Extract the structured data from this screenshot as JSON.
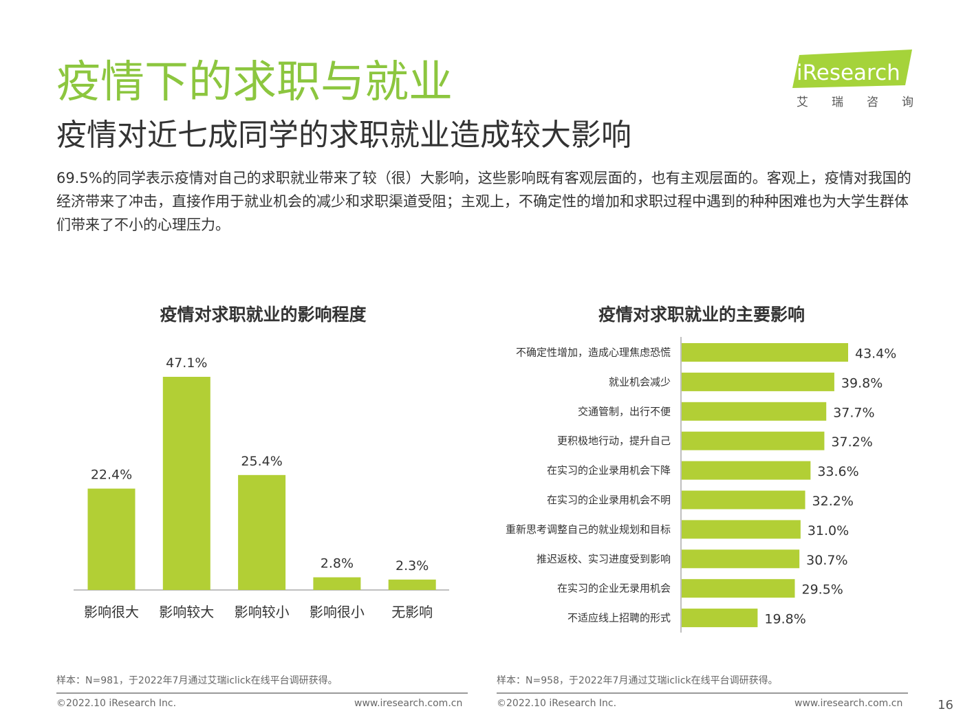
{
  "header": {
    "title": "疫情下的求职与就业",
    "subtitle": "疫情对近七成同学的求职就业造成较大影响",
    "intro": "69.5%的同学表示疫情对自己的求职就业带来了较（很）大影响，这些影响既有客观层面的，也有主观层面的。客观上，疫情对我国的经济带来了冲击，直接作用于就业机会的减少和求职渠道受阻；主观上，不确定性的增加和求职过程中遇到的种种困难也为大学生群体们带来了不小的心理压力。"
  },
  "logo": {
    "brand": "iResearch",
    "chinese_chars": [
      "艾",
      "瑞",
      "咨",
      "询"
    ]
  },
  "colors": {
    "accent": "#8cc63f",
    "bar": "#b2cf35"
  },
  "chart_data": [
    {
      "type": "bar",
      "title": "疫情对求职就业的影响程度",
      "categories": [
        "影响很大",
        "影响较大",
        "影响较小",
        "影响很小",
        "无影响"
      ],
      "values": [
        22.4,
        47.1,
        25.4,
        2.8,
        2.3
      ],
      "value_labels": [
        "22.4%",
        "47.1%",
        "25.4%",
        "2.8%",
        "2.3%"
      ],
      "unit": "%",
      "ylim": [
        0,
        50
      ],
      "grid": false
    },
    {
      "type": "bar",
      "orientation": "horizontal",
      "title": "疫情对求职就业的主要影响",
      "categories": [
        "不确定性增加，造成心理焦虑恐慌",
        "就业机会减少",
        "交通管制，出行不便",
        "更积极地行动，提升自己",
        "在实习的企业录用机会下降",
        "在实习的企业录用机会不明",
        "重新思考调整自己的就业规划和目标",
        "推迟返校、实习进度受到影响",
        "在实习的企业无录用机会",
        "不适应线上招聘的形式"
      ],
      "values": [
        43.4,
        39.8,
        37.7,
        37.2,
        33.6,
        32.2,
        31.0,
        30.7,
        29.5,
        19.8
      ],
      "value_labels": [
        "43.4%",
        "39.8%",
        "37.7%",
        "37.2%",
        "33.6%",
        "32.2%",
        "31.0%",
        "30.7%",
        "29.5%",
        "19.8%"
      ],
      "unit": "%",
      "xlim": [
        0,
        50
      ],
      "grid": false
    }
  ],
  "footer": {
    "left_note": "样本：N=981，于2022年7月通过艾瑞iclick在线平台调研获得。",
    "right_note": "样本：N=958，于2022年7月通过艾瑞iclick在线平台调研获得。",
    "copyright": "©2022.10 iResearch Inc.",
    "website": "www.iresearch.com.cn",
    "page_number": "16"
  }
}
